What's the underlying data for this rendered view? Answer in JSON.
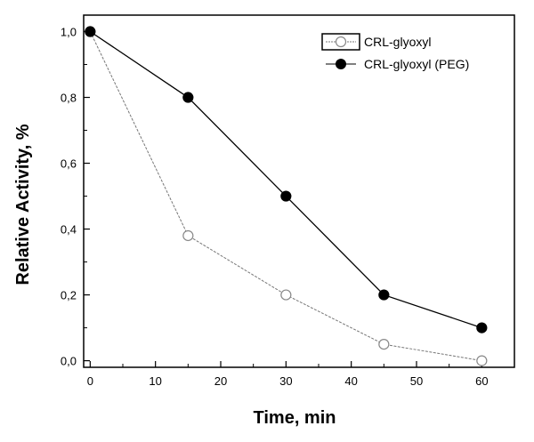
{
  "chart_data": {
    "type": "line",
    "title": "",
    "xlabel": "Time, min",
    "ylabel": "Relative Activity, %",
    "xlim": [
      -1,
      65
    ],
    "ylim": [
      -0.02,
      1.05
    ],
    "x_ticks": [
      0,
      10,
      20,
      30,
      40,
      50,
      60
    ],
    "x_tick_labels": [
      "0",
      "10",
      "20",
      "30",
      "40",
      "50",
      "60"
    ],
    "y_ticks": [
      0.0,
      0.2,
      0.4,
      0.6,
      0.8,
      1.0
    ],
    "y_tick_labels": [
      "0,0",
      "0,2",
      "0,4",
      "0,6",
      "0,8",
      "1,0"
    ],
    "grid": false,
    "legend_position": "top-right",
    "series": [
      {
        "name": "CRL-glyoxyl",
        "marker": "open-circle",
        "line_color": "#777777",
        "x": [
          0,
          15,
          30,
          45,
          60
        ],
        "y": [
          1.0,
          0.38,
          0.2,
          0.05,
          0.0
        ]
      },
      {
        "name": "CRL-glyoxyl (PEG)",
        "marker": "filled-circle",
        "line_color": "#000000",
        "x": [
          0,
          15,
          30,
          45,
          60
        ],
        "y": [
          1.0,
          0.8,
          0.5,
          0.2,
          0.1
        ]
      }
    ]
  }
}
